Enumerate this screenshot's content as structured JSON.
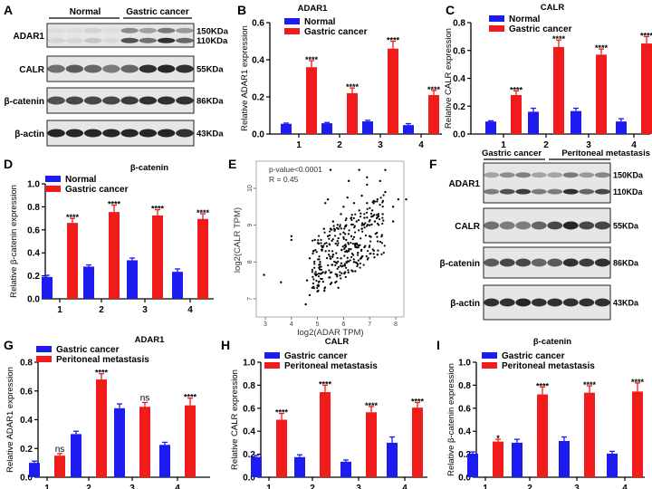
{
  "panel_labels": [
    "A",
    "B",
    "C",
    "D",
    "E",
    "F",
    "G",
    "H",
    "I"
  ],
  "blots": {
    "A": {
      "groups": [
        "Normal",
        "Gastric cancer"
      ],
      "rows": [
        {
          "label": "ADAR1",
          "kda": [
            "150KDa",
            "110KDa"
          ]
        },
        {
          "label": "CALR",
          "kda": [
            "55KDa"
          ]
        },
        {
          "label": "β-catenin",
          "kda": [
            "86KDa"
          ]
        },
        {
          "label": "β-actin",
          "kda": [
            "43KDa"
          ]
        }
      ]
    },
    "F": {
      "groups": [
        "Gastric cancer",
        "Peritoneal metastasis"
      ],
      "rows": [
        {
          "label": "ADAR1",
          "kda": [
            "150KDa",
            "110KDa"
          ]
        },
        {
          "label": "CALR",
          "kda": [
            "55KDa"
          ]
        },
        {
          "label": "β-catenin",
          "kda": [
            "86KDa"
          ]
        },
        {
          "label": "β-actin",
          "kda": [
            "43KDa"
          ]
        }
      ]
    }
  },
  "colors": {
    "series1": "#1c1cf0",
    "series2": "#f01c1c"
  },
  "chart_data": [
    {
      "panel": "B",
      "type": "bar",
      "title": "ADAR1",
      "ylabel": "Relative ADAR1 expression",
      "categories": [
        "1",
        "2",
        "3",
        "4"
      ],
      "ylim": [
        0,
        0.6
      ],
      "yticks": [
        "0.0",
        "0.2",
        "0.4",
        "0.6"
      ],
      "series": [
        {
          "name": "Normal",
          "values": [
            0.055,
            0.058,
            0.068,
            0.048
          ],
          "errors": [
            0.004,
            0.004,
            0.006,
            0.008
          ]
        },
        {
          "name": "Gastric cancer",
          "values": [
            0.36,
            0.22,
            0.46,
            0.21
          ],
          "errors": [
            0.035,
            0.028,
            0.04,
            0.025
          ]
        }
      ],
      "significance": [
        "****",
        "****",
        "****",
        "****"
      ]
    },
    {
      "panel": "C",
      "type": "bar",
      "title": "CALR",
      "ylabel": "Relative CALR expression",
      "categories": [
        "1",
        "2",
        "3",
        "4"
      ],
      "ylim": [
        0,
        0.8
      ],
      "yticks": [
        "0.0",
        "0.2",
        "0.4",
        "0.6",
        "0.8"
      ],
      "series": [
        {
          "name": "Normal",
          "values": [
            0.09,
            0.16,
            0.165,
            0.09
          ],
          "errors": [
            0.005,
            0.025,
            0.02,
            0.02
          ]
        },
        {
          "name": "Gastric cancer",
          "values": [
            0.28,
            0.625,
            0.57,
            0.65
          ],
          "errors": [
            0.03,
            0.05,
            0.04,
            0.05
          ]
        }
      ],
      "significance": [
        "****",
        "****",
        "****",
        "****"
      ]
    },
    {
      "panel": "D",
      "type": "bar",
      "title": "β-catenin",
      "ylabel": "Relative β-catenin expression",
      "categories": [
        "1",
        "2",
        "3",
        "4"
      ],
      "ylim": [
        0,
        1.0
      ],
      "yticks": [
        "0.0",
        "0.2",
        "0.4",
        "0.6",
        "0.8",
        "1.0"
      ],
      "series": [
        {
          "name": "Normal",
          "values": [
            0.19,
            0.28,
            0.335,
            0.235
          ],
          "errors": [
            0.015,
            0.015,
            0.02,
            0.025
          ]
        },
        {
          "name": "Gastric cancer",
          "values": [
            0.66,
            0.755,
            0.725,
            0.695
          ],
          "errors": [
            0.04,
            0.06,
            0.05,
            0.045
          ]
        }
      ],
      "significance": [
        "****",
        "****",
        "****",
        "****"
      ]
    },
    {
      "panel": "E",
      "type": "scatter",
      "xlabel": "log2(ADAR TPM)",
      "ylabel": "log2(CALR TPM)",
      "xlim": [
        2.85,
        8.5
      ],
      "ylim": [
        6.8,
        10.6
      ],
      "xticks": [
        "3",
        "4",
        "5",
        "6",
        "7",
        "8"
      ],
      "yticks": [
        "7",
        "8",
        "9",
        "10"
      ],
      "annotations": [
        "p-value<0.0001",
        "R = 0.45"
      ],
      "points": [
        [
          2.95,
          7.65
        ],
        [
          3.6,
          7.45
        ],
        [
          4,
          8.7
        ],
        [
          4,
          8.6
        ],
        [
          4.55,
          6.85
        ],
        [
          4.6,
          7.5
        ],
        [
          4.7,
          7.1
        ],
        [
          4.8,
          7.3
        ],
        [
          4.85,
          8.3
        ],
        [
          4.9,
          8.6
        ],
        [
          5.0,
          7.2
        ],
        [
          5.1,
          8.0
        ],
        [
          5.2,
          8.4
        ],
        [
          5.3,
          7.7
        ],
        [
          5.3,
          9.6
        ],
        [
          5.4,
          9.7
        ],
        [
          5.4,
          8.7
        ],
        [
          5.5,
          7.4
        ],
        [
          5.5,
          8.9
        ],
        [
          5.6,
          8.2
        ],
        [
          5.6,
          9.1
        ],
        [
          5.7,
          8.5
        ],
        [
          5.8,
          8.9
        ],
        [
          5.8,
          7.3
        ],
        [
          5.9,
          9.3
        ],
        [
          5.9,
          8.1
        ],
        [
          6.0,
          8.8
        ],
        [
          6.0,
          9.5
        ],
        [
          6.1,
          8.6
        ],
        [
          6.1,
          9.0
        ],
        [
          6.2,
          10.2
        ],
        [
          6.2,
          8.3
        ],
        [
          6.3,
          9.2
        ],
        [
          6.3,
          8.7
        ],
        [
          6.4,
          9.6
        ],
        [
          6.4,
          8.0
        ],
        [
          6.5,
          9.1
        ],
        [
          6.5,
          8.5
        ],
        [
          6.6,
          9.4
        ],
        [
          6.6,
          10.5
        ],
        [
          6.7,
          8.9
        ],
        [
          6.7,
          9.8
        ],
        [
          6.8,
          9.2
        ],
        [
          6.8,
          8.4
        ],
        [
          6.9,
          9.6
        ],
        [
          6.9,
          10.3
        ],
        [
          7.0,
          9.0
        ],
        [
          7.0,
          8.7
        ],
        [
          7.1,
          9.4
        ],
        [
          7.2,
          9.1
        ],
        [
          7.3,
          8.2
        ],
        [
          7.3,
          9.7
        ],
        [
          7.4,
          10.2
        ],
        [
          7.5,
          9.3
        ],
        [
          7.6,
          10.5
        ],
        [
          7.6,
          9.9
        ],
        [
          7.9,
          9.5
        ],
        [
          7.9,
          9.1
        ],
        [
          8.1,
          9.7
        ],
        [
          8.4,
          9.7
        ],
        [
          5.5,
          10.5
        ],
        [
          6.9,
          10.1
        ],
        [
          4.7,
          8.1
        ],
        [
          5.05,
          8.5
        ],
        [
          5.25,
          8.9
        ],
        [
          6.05,
          7.9
        ],
        [
          6.45,
          7.75
        ],
        [
          5.75,
          7.65
        ],
        [
          6.15,
          9.75
        ],
        [
          6.55,
          8.25
        ]
      ]
    },
    {
      "panel": "G",
      "type": "bar",
      "title": "ADAR1",
      "ylabel": "Relative ADAR1 expression",
      "categories": [
        "1",
        "2",
        "3",
        "4"
      ],
      "ylim": [
        0,
        0.8
      ],
      "yticks": [
        "0.0",
        "0.2",
        "0.4",
        "0.6",
        "0.8"
      ],
      "series": [
        {
          "name": "Gastric cancer",
          "values": [
            0.1,
            0.3,
            0.48,
            0.225
          ],
          "errors": [
            0.012,
            0.02,
            0.03,
            0.018
          ]
        },
        {
          "name": "Peritoneal metastasis",
          "values": [
            0.15,
            0.68,
            0.49,
            0.5
          ],
          "errors": [
            0.015,
            0.04,
            0.03,
            0.05
          ]
        }
      ],
      "significance": [
        "ns",
        "****",
        "ns",
        "****"
      ]
    },
    {
      "panel": "H",
      "type": "bar",
      "title": "CALR",
      "ylabel": "Relative CALR expression",
      "categories": [
        "1",
        "2",
        "3",
        "4"
      ],
      "ylim": [
        0,
        1.0
      ],
      "yticks": [
        "0.0",
        "0.2",
        "0.4",
        "0.6",
        "0.8",
        "1.0"
      ],
      "series": [
        {
          "name": "Gastric cancer",
          "values": [
            0.175,
            0.175,
            0.135,
            0.3
          ],
          "errors": [
            0.015,
            0.02,
            0.015,
            0.05
          ]
        },
        {
          "name": "Peritoneal metastasis",
          "values": [
            0.5,
            0.74,
            0.565,
            0.605
          ],
          "errors": [
            0.055,
            0.06,
            0.05,
            0.045
          ]
        }
      ],
      "significance": [
        "****",
        "****",
        "****",
        "****"
      ]
    },
    {
      "panel": "I",
      "type": "bar",
      "title": "β-catenin",
      "ylabel": "Relative β-catenin expression",
      "categories": [
        "1",
        "2",
        "3",
        "4"
      ],
      "ylim": [
        0,
        1.0
      ],
      "yticks": [
        "0.0",
        "0.2",
        "0.4",
        "0.6",
        "0.8",
        "1.0"
      ],
      "series": [
        {
          "name": "Gastric cancer",
          "values": [
            0.205,
            0.3,
            0.315,
            0.205
          ],
          "errors": [
            0.015,
            0.03,
            0.035,
            0.02
          ]
        },
        {
          "name": "Peritoneal metastasis",
          "values": [
            0.31,
            0.72,
            0.735,
            0.745
          ],
          "errors": [
            0.02,
            0.065,
            0.06,
            0.075
          ]
        }
      ],
      "significance": [
        "*",
        "****",
        "****",
        "****"
      ]
    }
  ]
}
